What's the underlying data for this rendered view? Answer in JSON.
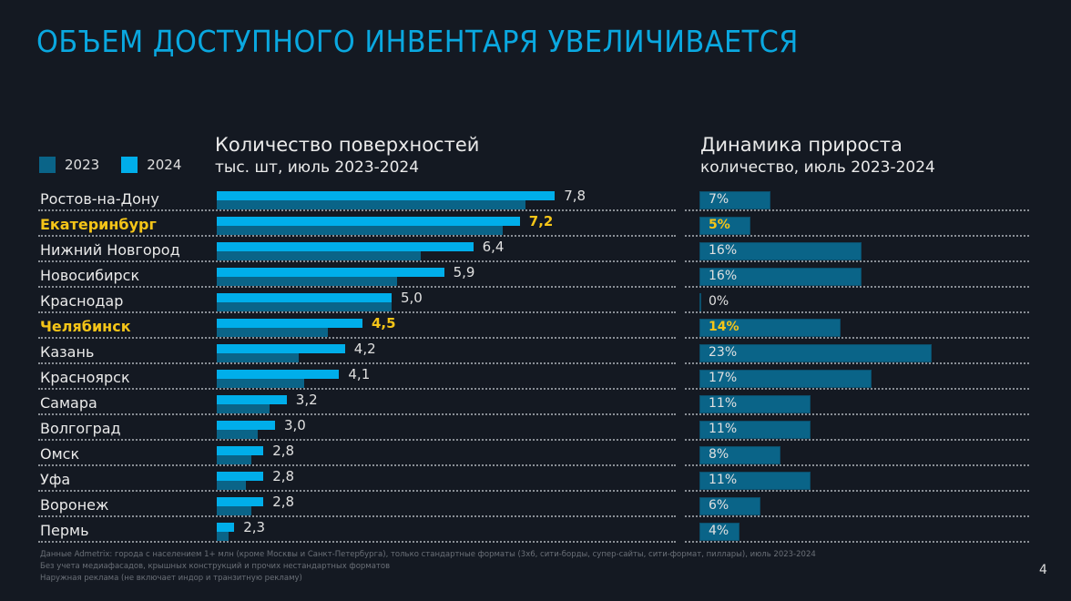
{
  "title": "ОБЪЕМ ДОСТУПНОГО ИНВЕНТАРЯ УВЕЛИЧИВАЕТСЯ",
  "colors": {
    "series_2023": "#0a6488",
    "series_2024": "#00aeea",
    "highlight": "#f5c518",
    "title": "#0aa8e0",
    "background": "#141922"
  },
  "legend": [
    {
      "label": "2023",
      "color": "#0a6488"
    },
    {
      "label": "2024",
      "color": "#00aeea"
    }
  ],
  "left_header": {
    "title": "Количество поверхностей",
    "subtitle": "тыс. шт, июль 2023-2024"
  },
  "right_header": {
    "title": "Динамика прироста",
    "subtitle": "количество, июль 2023-2024"
  },
  "chart_data": [
    {
      "type": "bar",
      "orientation": "horizontal",
      "title": "Количество поверхностей",
      "subtitle": "тыс. шт, июль 2023-2024",
      "categories": [
        "Ростов-на-Дону",
        "Екатеринбург",
        "Нижний Новгород",
        "Новосибирск",
        "Краснодар",
        "Челябинск",
        "Казань",
        "Красноярск",
        "Самара",
        "Волгоград",
        "Омск",
        "Уфа",
        "Воронеж",
        "Пермь"
      ],
      "highlighted": [
        "Екатеринбург",
        "Челябинск"
      ],
      "series": [
        {
          "name": "2024",
          "values": [
            7.8,
            7.2,
            6.4,
            5.9,
            5.0,
            4.5,
            4.2,
            4.1,
            3.2,
            3.0,
            2.8,
            2.8,
            2.8,
            2.3
          ],
          "labels": [
            "7,8",
            "7,2",
            "6,4",
            "5,9",
            "5,0",
            "4,5",
            "4,2",
            "4,1",
            "3,2",
            "3,0",
            "2,8",
            "2,8",
            "2,8",
            "2,3"
          ]
        },
        {
          "name": "2023",
          "values": [
            7.3,
            6.9,
            5.5,
            5.1,
            5.0,
            3.9,
            3.4,
            3.5,
            2.9,
            2.7,
            2.6,
            2.5,
            2.6,
            2.2
          ]
        }
      ],
      "xlim": [
        2.0,
        8.0
      ],
      "legend": "top-left"
    },
    {
      "type": "bar",
      "orientation": "horizontal",
      "title": "Динамика прироста",
      "subtitle": "количество, июль 2023-2024",
      "categories": [
        "Ростов-на-Дону",
        "Екатеринбург",
        "Нижний Новгород",
        "Новосибирск",
        "Краснодар",
        "Челябинск",
        "Казань",
        "Красноярск",
        "Самара",
        "Волгоград",
        "Омск",
        "Уфа",
        "Воронеж",
        "Пермь"
      ],
      "values": [
        7,
        5,
        16,
        16,
        0,
        14,
        23,
        17,
        11,
        11,
        8,
        11,
        6,
        4
      ],
      "labels": [
        "7%",
        "5%",
        "16%",
        "16%",
        "0%",
        "14%",
        "23%",
        "17%",
        "11%",
        "11%",
        "8%",
        "11%",
        "6%",
        "4%"
      ],
      "unit": "%",
      "xlim": [
        0,
        23
      ]
    }
  ],
  "footnotes": [
    "Данные Admetrix: города с населением 1+ млн (кроме Москвы и Санкт-Петербурга), только стандартные форматы (3х6, сити-борды, супер-сайты, сити-формат, пиллары), июль 2023-2024",
    "Без учета медиафасадов, крышных конструкций и прочих нестандартных форматов",
    "Наружная реклама (не включает индор и транзитную рекламу)"
  ],
  "page_number": "4"
}
